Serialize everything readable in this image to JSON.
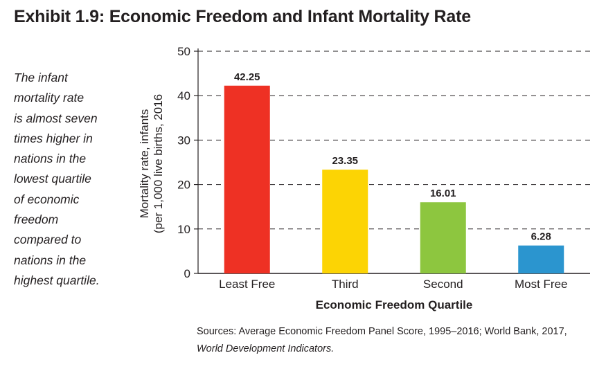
{
  "title": "Exhibit 1.9: Economic Freedom and Infant Mortality Rate",
  "sidebar_lines": [
    "The infant",
    "mortality rate",
    "is almost seven",
    "times higher in",
    "nations in the",
    "lowest quartile",
    "of  economic",
    "freedom",
    "compared to",
    "nations in the",
    "highest quartile."
  ],
  "sources": {
    "line1": "Sources: Average Economic Freedom Panel Score, 1995–2016; World Bank, 2017,",
    "line2": "World Development Indicators."
  },
  "chart_data": {
    "type": "bar",
    "categories": [
      "Least Free",
      "Third",
      "Second",
      "Most Free"
    ],
    "values": [
      42.25,
      23.35,
      16.01,
      6.28
    ],
    "value_labels": [
      "42.25",
      "23.35",
      "16.01",
      "6.28"
    ],
    "colors": [
      "#ee3124",
      "#fcd404",
      "#8dc63f",
      "#2b95cf"
    ],
    "xlabel": "Economic Freedom Quartile",
    "ylabel_lines": [
      "Mortality rate, infants",
      "(per 1,000 live births, 2016"
    ],
    "ylim": [
      0,
      50
    ],
    "yticks": [
      0,
      10,
      20,
      30,
      40,
      50
    ],
    "grid": "dashed horizontal"
  }
}
